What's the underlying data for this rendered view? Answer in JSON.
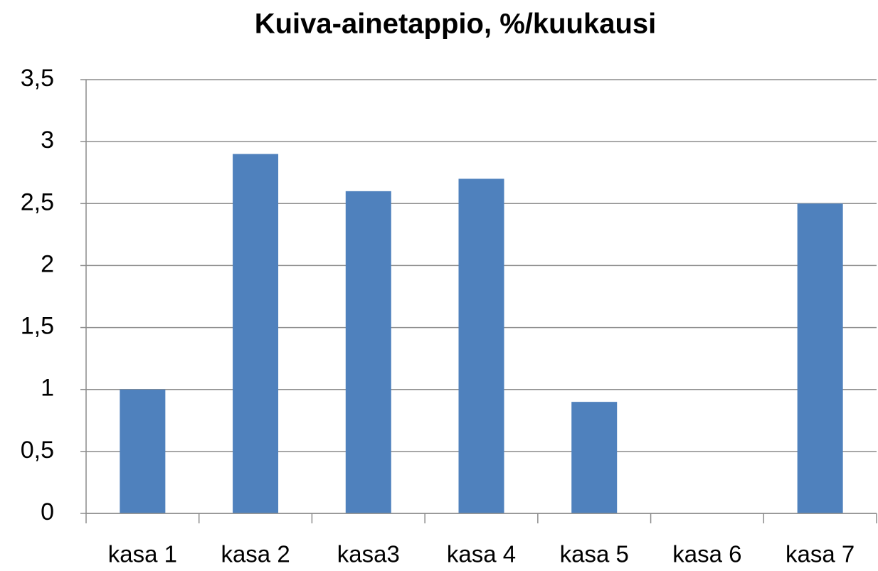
{
  "chart_data": {
    "type": "bar",
    "title": "Kuiva-ainetappio, %/kuukausi",
    "categories": [
      "kasa 1",
      "kasa 2",
      "kasa3",
      "kasa 4",
      "kasa 5",
      "kasa 6",
      "kasa 7"
    ],
    "values": [
      1.0,
      2.9,
      2.6,
      2.7,
      0.9,
      null,
      2.5
    ],
    "color": "#4f81bd",
    "ylim": [
      0,
      3.5
    ],
    "yticks": [
      0,
      {
        "value": 0.5,
        "label": "0,5"
      },
      1,
      {
        "value": 1.5,
        "label": "1,5"
      },
      2,
      {
        "value": 2.5,
        "label": "2,5"
      },
      3,
      {
        "value": 3.5,
        "label": "3,5"
      }
    ],
    "grid": true
  }
}
